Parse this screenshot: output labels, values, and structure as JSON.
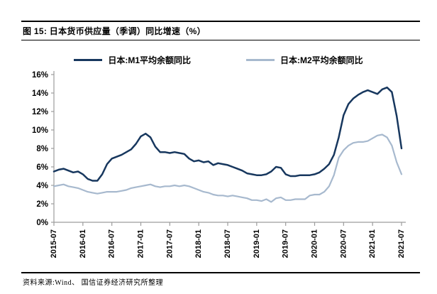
{
  "header": {
    "title": "图 15:  日本货币供应量（季调）同比增速（%）"
  },
  "footer": {
    "source": "资料来源:Wind、 国信证券经济研究所整理"
  },
  "colors": {
    "m1_line": "#17375E",
    "m2_line": "#A7B9CE",
    "axis": "#9c9c9c",
    "text": "#000000"
  },
  "chart_data": {
    "type": "line",
    "title": "日本货币供应量（季调）同比增速（%）",
    "x_frequency": "monthly",
    "x_start": "2015-07",
    "x_end": "2021-07",
    "x_ticklabels": [
      "2015-07",
      "2016-01",
      "2016-07",
      "2017-01",
      "2017-07",
      "2018-01",
      "2018-07",
      "2019-01",
      "2019-07",
      "2020-01",
      "2020-07",
      "2021-01",
      "2021-07"
    ],
    "y_ticklabels": [
      "0%",
      "2%",
      "4%",
      "6%",
      "8%",
      "10%",
      "12%",
      "14%",
      "16%"
    ],
    "ylim": [
      0,
      16
    ],
    "grid": false,
    "legend_position": "top",
    "series": [
      {
        "name": "日本:M1平均余额同比",
        "color": "#17375E",
        "values": [
          5.5,
          5.7,
          5.8,
          5.6,
          5.4,
          5.5,
          5.2,
          4.7,
          4.5,
          4.5,
          5.2,
          6.3,
          6.9,
          7.1,
          7.3,
          7.6,
          7.9,
          8.5,
          9.3,
          9.6,
          9.2,
          8.2,
          7.6,
          7.6,
          7.5,
          7.6,
          7.5,
          7.4,
          6.9,
          6.6,
          6.7,
          6.5,
          6.6,
          6.2,
          6.4,
          6.3,
          6.2,
          6.0,
          5.8,
          5.6,
          5.3,
          5.2,
          5.1,
          5.1,
          5.2,
          5.5,
          6.0,
          5.9,
          5.2,
          5.0,
          5.0,
          5.1,
          5.1,
          5.1,
          5.2,
          5.4,
          5.8,
          6.3,
          7.3,
          9.2,
          11.6,
          12.8,
          13.4,
          13.8,
          14.1,
          14.3,
          14.1,
          13.9,
          14.4,
          14.6,
          14.1,
          11.5,
          8.0
        ]
      },
      {
        "name": "日本:M2平均余额同比",
        "color": "#A7B9CE",
        "values": [
          3.9,
          4.0,
          4.1,
          3.9,
          3.8,
          3.7,
          3.5,
          3.3,
          3.2,
          3.1,
          3.2,
          3.3,
          3.3,
          3.3,
          3.4,
          3.5,
          3.7,
          3.8,
          3.9,
          4.0,
          4.1,
          3.9,
          3.8,
          3.9,
          3.9,
          4.0,
          3.9,
          4.0,
          3.9,
          3.7,
          3.5,
          3.3,
          3.2,
          3.0,
          2.9,
          2.9,
          2.8,
          2.9,
          2.8,
          2.7,
          2.6,
          2.4,
          2.4,
          2.3,
          2.5,
          2.2,
          2.6,
          2.7,
          2.4,
          2.4,
          2.5,
          2.5,
          2.5,
          2.9,
          3.0,
          3.0,
          3.3,
          3.9,
          5.1,
          7.0,
          7.8,
          8.3,
          8.6,
          8.7,
          8.7,
          8.8,
          9.1,
          9.4,
          9.5,
          9.2,
          8.3,
          6.5,
          5.2
        ]
      }
    ]
  }
}
